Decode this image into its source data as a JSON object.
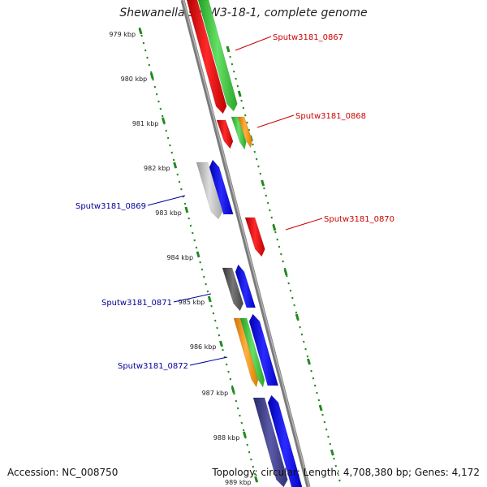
{
  "title": "Shewanella sp. W3-18-1, complete genome",
  "footer": {
    "accession": "Accession: NC_008750",
    "stats": "Topology: circular; Length: 4,708,380 bp; Genes: 4,172"
  },
  "ticks": [
    "979 kbp",
    "980 kbp",
    "981 kbp",
    "982 kbp",
    "983 kbp",
    "984 kbp",
    "985 kbp",
    "986 kbp",
    "987 kbp",
    "988 kbp",
    "989 kbp"
  ],
  "gene_labels": [
    "Sputw3181_0867",
    "Sputw3181_0868",
    "Sputw3181_0869",
    "Sputw3181_0870",
    "Sputw3181_0871",
    "Sputw3181_0872"
  ],
  "colors": {
    "red": "#ff0000",
    "green": "#33cc33",
    "orange": "#ff9900",
    "blue": "#0000ff",
    "light_gray": "#bbbbbb",
    "dark_gray": "#555555",
    "slate": "#3d3d8a",
    "tick_green": "#228822",
    "backbone": "#888888",
    "label_red": "#cc0000",
    "label_blue": "#000099"
  }
}
